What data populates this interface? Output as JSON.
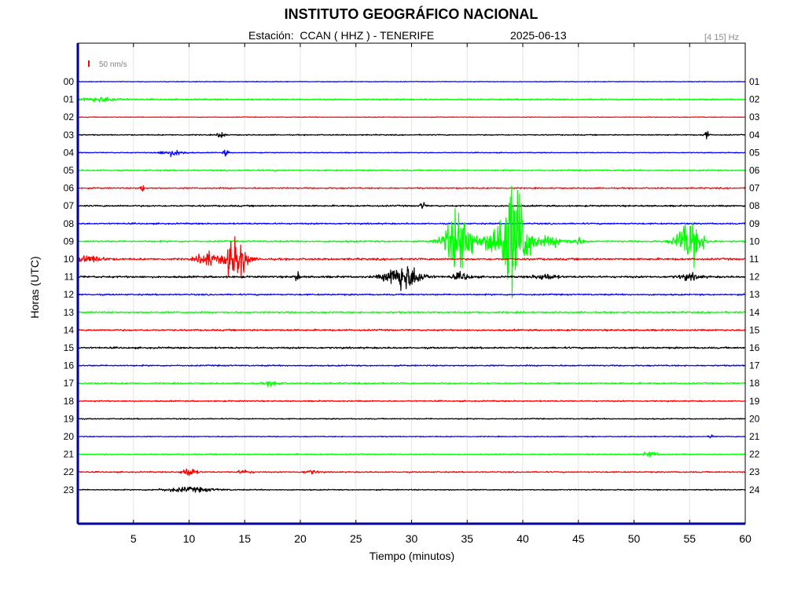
{
  "page": {
    "title": "INSTITUTO GEOGRÁFICO NACIONAL",
    "station_line": "Estación:  CCAN ( HHZ ) - TENERIFE",
    "date": "2025-06-13",
    "filter": "[4 15] Hz"
  },
  "chart_data": {
    "type": "line",
    "title": "INSTITUTO GEOGRÁFICO NACIONAL",
    "subtitle": "Estación:  CCAN ( HHZ ) - TENERIFE   2025-06-13",
    "xlabel": "Tiempo (minutos)",
    "ylabel": "Horas (UTC)",
    "xlim": [
      0,
      60
    ],
    "x_ticks": [
      5,
      10,
      15,
      20,
      25,
      30,
      35,
      40,
      45,
      50,
      55,
      60
    ],
    "grid": true,
    "scale_bar_label": "50 nm/s",
    "scale_bar_color": "#ff0000",
    "trace_colors": [
      "#0000ff",
      "#00ff00",
      "#ff0000",
      "#000000"
    ],
    "traces": [
      {
        "left_label": "00",
        "right_label": "01",
        "color": "#0000ff",
        "noise": 1.0,
        "events": []
      },
      {
        "left_label": "01",
        "right_label": "02",
        "color": "#00ff00",
        "noise": 2.0,
        "events": [
          {
            "t": 2.0,
            "amp": 4,
            "dur": 2.5
          }
        ]
      },
      {
        "left_label": "02",
        "right_label": "03",
        "color": "#ff0000",
        "noise": 1.0,
        "events": []
      },
      {
        "left_label": "03",
        "right_label": "04",
        "color": "#000000",
        "noise": 1.6,
        "events": [
          {
            "t": 12.9,
            "amp": 10,
            "dur": 0.4
          },
          {
            "t": 56.5,
            "amp": 10,
            "dur": 0.3
          }
        ]
      },
      {
        "left_label": "04",
        "right_label": "05",
        "color": "#0000ff",
        "noise": 1.3,
        "events": [
          {
            "t": 8.5,
            "amp": 5,
            "dur": 1.6
          },
          {
            "t": 13.3,
            "amp": 7,
            "dur": 0.3
          }
        ]
      },
      {
        "left_label": "05",
        "right_label": "06",
        "color": "#00ff00",
        "noise": 2.2,
        "events": []
      },
      {
        "left_label": "06",
        "right_label": "07",
        "color": "#ff0000",
        "noise": 2.0,
        "events": [
          {
            "t": 5.8,
            "amp": 16,
            "dur": 0.2
          }
        ]
      },
      {
        "left_label": "07",
        "right_label": "08",
        "color": "#000000",
        "noise": 2.4,
        "events": [
          {
            "t": 31.0,
            "amp": 7,
            "dur": 0.3
          }
        ]
      },
      {
        "left_label": "08",
        "right_label": "09",
        "color": "#0000ff",
        "noise": 2.2,
        "events": []
      },
      {
        "left_label": "09",
        "right_label": "10",
        "color": "#00ff00",
        "noise": 2.4,
        "events": [
          {
            "t": 34.3,
            "amp": 60,
            "dur": 1.8
          },
          {
            "t": 37.3,
            "amp": 20,
            "dur": 1.2
          },
          {
            "t": 39.2,
            "amp": 105,
            "dur": 1.8
          },
          {
            "t": 42.5,
            "amp": 8,
            "dur": 2.0
          },
          {
            "t": 45.0,
            "amp": 6,
            "dur": 0.8
          },
          {
            "t": 55.0,
            "amp": 40,
            "dur": 1.6
          }
        ]
      },
      {
        "left_label": "10",
        "right_label": "11",
        "color": "#ff0000",
        "noise": 3.0,
        "events": [
          {
            "t": 1.0,
            "amp": 5,
            "dur": 2.0
          },
          {
            "t": 11.6,
            "amp": 14,
            "dur": 1.2
          },
          {
            "t": 14.2,
            "amp": 38,
            "dur": 1.4
          }
        ]
      },
      {
        "left_label": "11",
        "right_label": "12",
        "color": "#000000",
        "noise": 3.0,
        "events": [
          {
            "t": 19.7,
            "amp": 10,
            "dur": 0.3
          },
          {
            "t": 29.3,
            "amp": 24,
            "dur": 2.2
          },
          {
            "t": 34.5,
            "amp": 6,
            "dur": 1.2
          },
          {
            "t": 42.0,
            "amp": 5,
            "dur": 1.5
          },
          {
            "t": 55.0,
            "amp": 5,
            "dur": 1.5
          }
        ]
      },
      {
        "left_label": "12",
        "right_label": "13",
        "color": "#0000ff",
        "noise": 2.2,
        "events": []
      },
      {
        "left_label": "13",
        "right_label": "14",
        "color": "#00ff00",
        "noise": 2.5,
        "events": []
      },
      {
        "left_label": "14",
        "right_label": "15",
        "color": "#ff0000",
        "noise": 2.5,
        "events": []
      },
      {
        "left_label": "15",
        "right_label": "16",
        "color": "#000000",
        "noise": 2.6,
        "events": []
      },
      {
        "left_label": "16",
        "right_label": "17",
        "color": "#0000ff",
        "noise": 2.0,
        "events": []
      },
      {
        "left_label": "17",
        "right_label": "18",
        "color": "#00ff00",
        "noise": 2.2,
        "events": [
          {
            "t": 17.5,
            "amp": 4,
            "dur": 1.0
          }
        ]
      },
      {
        "left_label": "18",
        "right_label": "19",
        "color": "#ff0000",
        "noise": 2.0,
        "events": []
      },
      {
        "left_label": "19",
        "right_label": "20",
        "color": "#000000",
        "noise": 1.6,
        "events": []
      },
      {
        "left_label": "20",
        "right_label": "21",
        "color": "#0000ff",
        "noise": 1.4,
        "events": [
          {
            "t": 57.0,
            "amp": 5,
            "dur": 0.3
          }
        ]
      },
      {
        "left_label": "21",
        "right_label": "22",
        "color": "#00ff00",
        "noise": 1.8,
        "events": [
          {
            "t": 51.5,
            "amp": 4,
            "dur": 1.0
          }
        ]
      },
      {
        "left_label": "22",
        "right_label": "23",
        "color": "#ff0000",
        "noise": 1.8,
        "events": [
          {
            "t": 10.0,
            "amp": 8,
            "dur": 0.9
          },
          {
            "t": 15.0,
            "amp": 3,
            "dur": 1.0
          },
          {
            "t": 21.0,
            "amp": 3,
            "dur": 1.0
          }
        ]
      },
      {
        "left_label": "23",
        "right_label": "24",
        "color": "#000000",
        "noise": 1.6,
        "events": [
          {
            "t": 10.0,
            "amp": 4,
            "dur": 3.5
          }
        ]
      }
    ]
  }
}
